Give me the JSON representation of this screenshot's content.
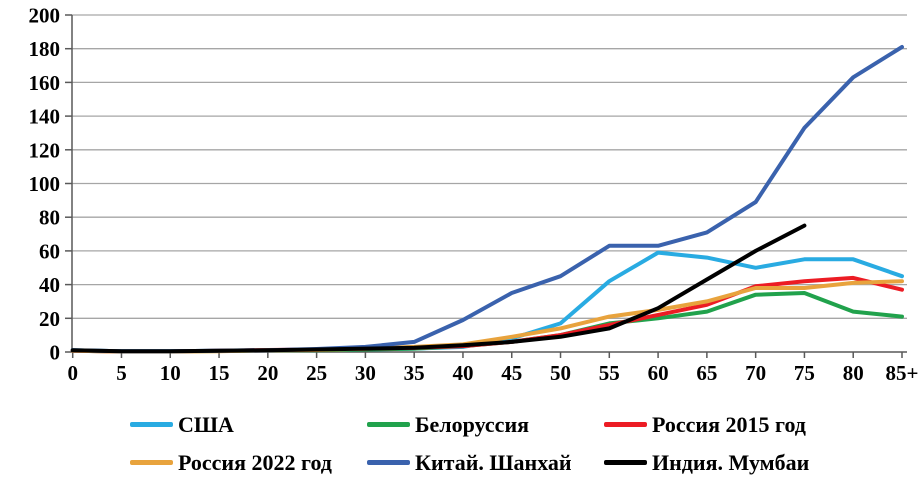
{
  "chart_data": {
    "type": "line",
    "title": "",
    "xlabel": "",
    "ylabel": "",
    "x_tick_labels": [
      "0",
      "5",
      "10",
      "15",
      "20",
      "25",
      "30",
      "35",
      "40",
      "45",
      "50",
      "55",
      "60",
      "65",
      "70",
      "75",
      "80",
      "85+"
    ],
    "y_tick_labels": [
      "0",
      "20",
      "40",
      "60",
      "80",
      "100",
      "120",
      "140",
      "160",
      "180",
      "200"
    ],
    "ylim": [
      0,
      200
    ],
    "grid": "horizontal",
    "grid_color": "#A6A6A6",
    "axis_color": "#595959",
    "legend_position": "bottom",
    "series": [
      {
        "name": "США",
        "color": "#29ABE2",
        "values": [
          1,
          0.4,
          0.4,
          0.8,
          1.2,
          1.2,
          1.5,
          2,
          3,
          8,
          17,
          42,
          59,
          56,
          50,
          55,
          55,
          45
        ]
      },
      {
        "name": "Белоруссия",
        "color": "#21A24C",
        "values": [
          0.8,
          0.3,
          0.3,
          0.6,
          1,
          1,
          1.5,
          2,
          3.5,
          6,
          10,
          17,
          20,
          24,
          34,
          35,
          24,
          21
        ]
      },
      {
        "name": "Россия 2015 год",
        "color": "#EC1C24",
        "values": [
          0.8,
          0.3,
          0.3,
          0.7,
          1.2,
          1.5,
          2,
          2.5,
          3.5,
          6,
          10,
          16,
          22,
          28,
          39,
          42,
          44,
          37
        ]
      },
      {
        "name": "Россия 2022 год",
        "color": "#E8A33D",
        "values": [
          0.8,
          0.3,
          0.3,
          0.5,
          1,
          1.2,
          2,
          3,
          4.5,
          9,
          14,
          21,
          25,
          30,
          38,
          38,
          41,
          42
        ]
      },
      {
        "name": "Китай. Шанхай",
        "color": "#3A62AD",
        "values": [
          1,
          0.5,
          0.5,
          0.7,
          1,
          1.8,
          3,
          6,
          19,
          35,
          45,
          63,
          63,
          71,
          89,
          133,
          163,
          181
        ]
      },
      {
        "name": "Индия. Мумбаи",
        "color": "#000000",
        "values": [
          1,
          0.5,
          0.5,
          0.7,
          1,
          1.5,
          2,
          2.5,
          4,
          6,
          9,
          14,
          26,
          43,
          60,
          75
        ]
      }
    ]
  }
}
